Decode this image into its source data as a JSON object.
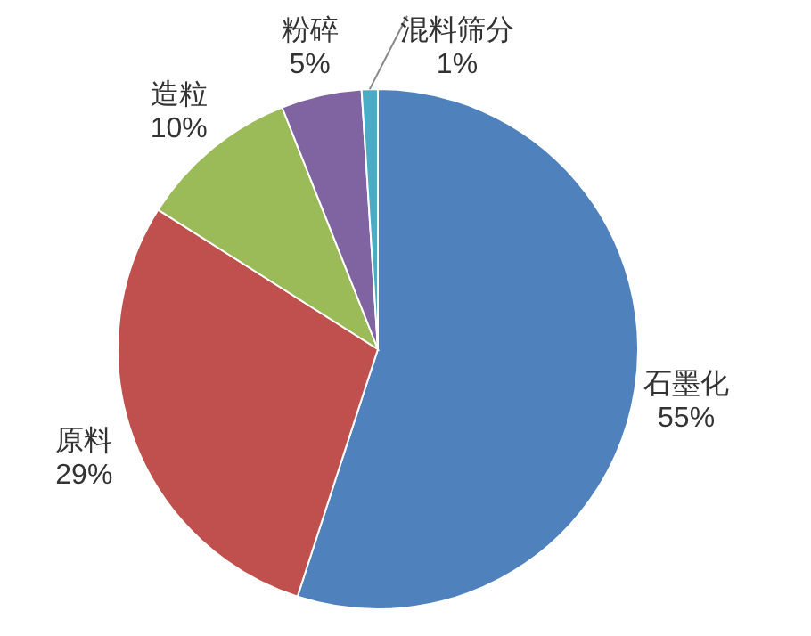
{
  "chart_data": {
    "type": "pie",
    "categories": [
      "石墨化",
      "原料",
      "造粒",
      "粉碎",
      "混料筛分"
    ],
    "values": [
      55,
      29,
      10,
      5,
      1
    ],
    "colors": [
      "#4f81bd",
      "#c0504d",
      "#9bbb59",
      "#8064a2",
      "#4bacc6"
    ],
    "value_labels": [
      "55%",
      "29%",
      "10%",
      "5%",
      "1%"
    ]
  }
}
